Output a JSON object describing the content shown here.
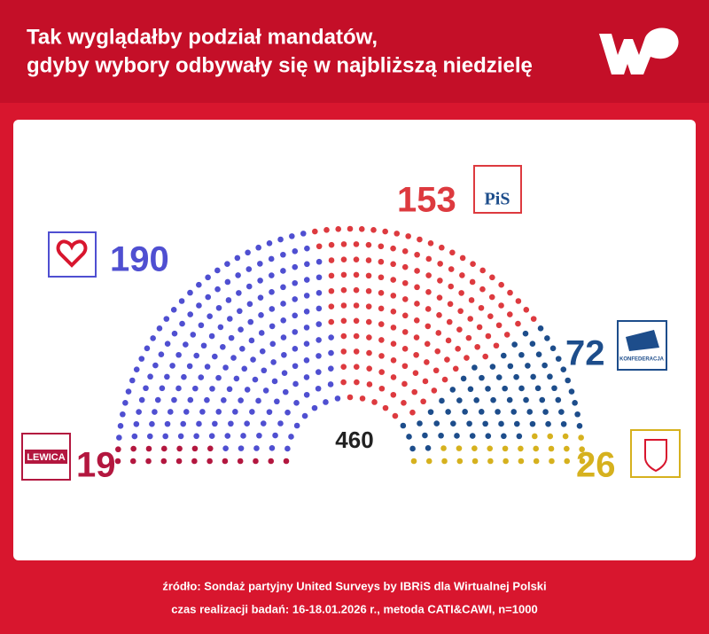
{
  "chart_data": {
    "type": "parliament",
    "title": [
      "Tak wyglądałby podział mandatów,",
      "gdyby wybory odbywały się w najbliższą niedzielę"
    ],
    "total": 460,
    "series": [
      {
        "name": "LEWICA",
        "color": "#b3173f",
        "value": 19
      },
      {
        "color": "#4f4fd1",
        "value": 190
      },
      {
        "name": "PiS",
        "color": "#dd3a3f",
        "value": 153
      },
      {
        "name": "KONFEDERACJA",
        "color": "#1d4d8b",
        "value": 72
      },
      {
        "color": "#d6b11e",
        "value": 26
      }
    ],
    "source": [
      "źródło: Sondaż partyjny United Surveys by IBRiS dla Wirtualnej Polski",
      "czas realizacji badań: 16-18.01.2026 r., metoda CATI&CAWI, n=1000"
    ]
  }
}
